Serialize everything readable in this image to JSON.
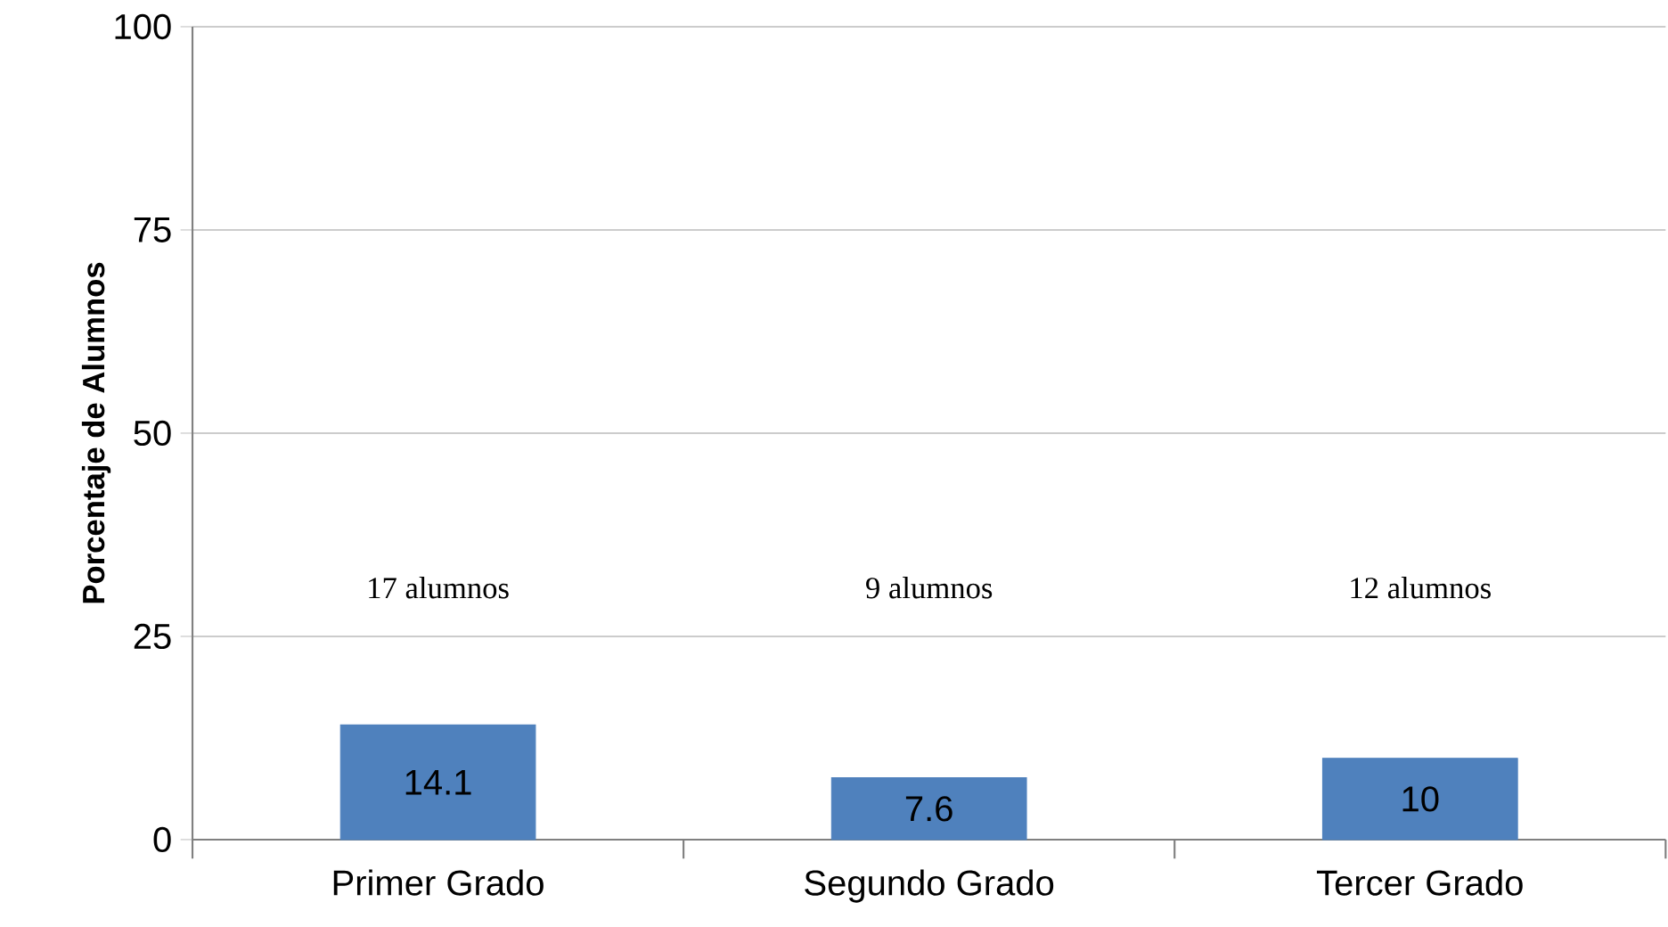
{
  "chart_data": {
    "type": "bar",
    "ylabel": "Porcentaje de Alumnos",
    "categories": [
      "Primer Grado",
      "Segundo Grado",
      "Tercer Grado"
    ],
    "values": [
      14.1,
      7.6,
      10
    ],
    "color": "#4f81bd",
    "ylim": [
      0,
      100
    ],
    "yticks": [
      0,
      25,
      50,
      75,
      100
    ],
    "grid": "y",
    "data_labels": true,
    "annotations": [
      "17 alumnos",
      "9 alumnos",
      "12 alumnos"
    ]
  }
}
